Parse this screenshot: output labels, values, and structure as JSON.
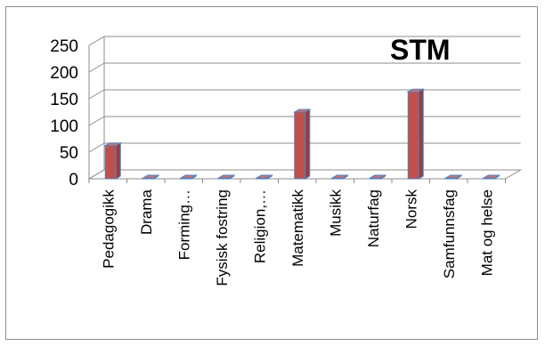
{
  "chart_data": {
    "type": "bar",
    "title": "STM",
    "categories": [
      "Pedagogikk",
      "Drama",
      "Forming…",
      "Fysisk fostring",
      "Religion,…",
      "Matematikk",
      "Musikk",
      "Naturfag",
      "Norsk",
      "Samfunnsfag",
      "Mat og helse"
    ],
    "values": [
      62,
      1,
      1,
      0,
      0,
      125,
      1,
      0,
      163,
      0,
      0
    ],
    "yticks": [
      "0",
      "50",
      "100",
      "150",
      "200",
      "250"
    ],
    "ylim": [
      0,
      250
    ],
    "grid": true,
    "three_d": true,
    "bar_color": "#c0504d",
    "bar_edge_color": "#4f81bd"
  }
}
